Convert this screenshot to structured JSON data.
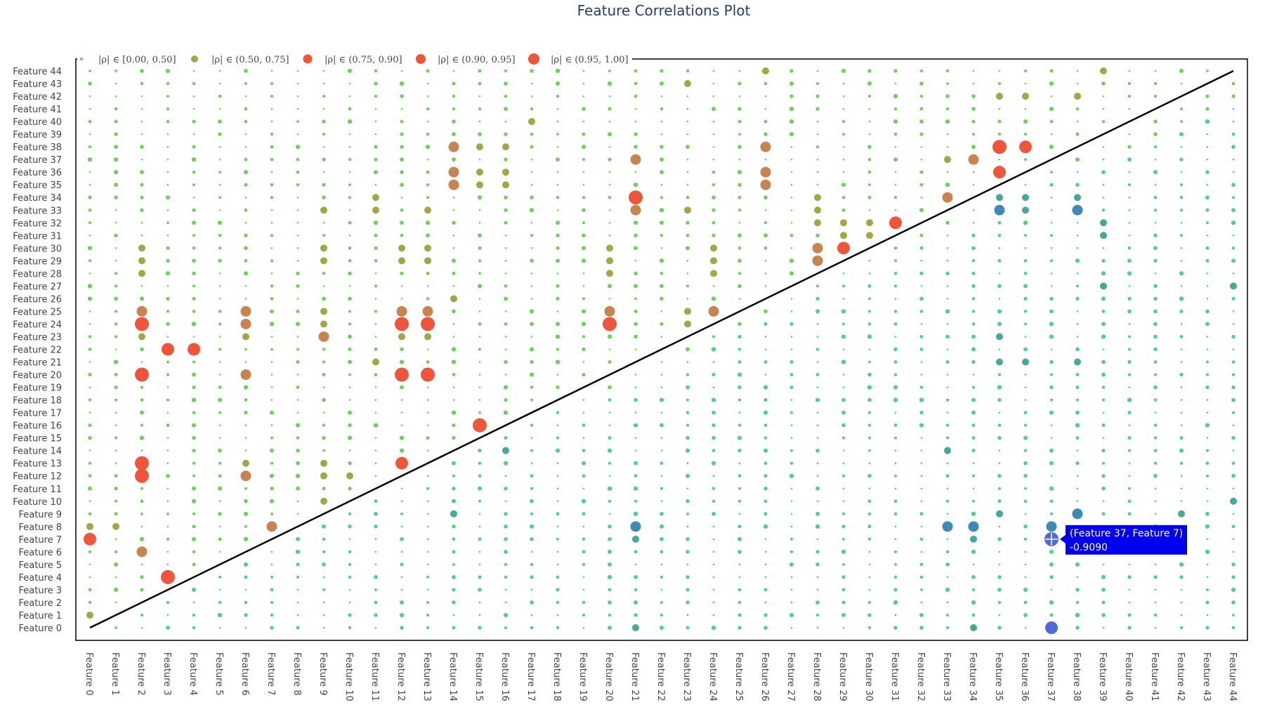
{
  "chart_data": {
    "type": "scatter",
    "title": "Feature Correlations Plot",
    "xlabel": "",
    "ylabel": "",
    "categories": [
      "Feature 0",
      "Feature 1",
      "Feature 2",
      "Feature 3",
      "Feature 4",
      "Feature 5",
      "Feature 6",
      "Feature 7",
      "Feature 8",
      "Feature 9",
      "Feature 10",
      "Feature 11",
      "Feature 12",
      "Feature 13",
      "Feature 14",
      "Feature 15",
      "Feature 16",
      "Feature 17",
      "Feature 18",
      "Feature 19",
      "Feature 20",
      "Feature 21",
      "Feature 22",
      "Feature 23",
      "Feature 24",
      "Feature 25",
      "Feature 26",
      "Feature 27",
      "Feature 28",
      "Feature 29",
      "Feature 30",
      "Feature 31",
      "Feature 32",
      "Feature 33",
      "Feature 34",
      "Feature 35",
      "Feature 36",
      "Feature 37",
      "Feature 38",
      "Feature 39",
      "Feature 40",
      "Feature 41",
      "Feature 42",
      "Feature 43",
      "Feature 44"
    ],
    "legend": {
      "placement": "top-left",
      "entries": [
        {
          "label": "|ρ| ∈ [0.00, 0.50]",
          "color": "#5ad45a",
          "size": 2
        },
        {
          "label": "|ρ| ∈ (0.50, 0.75]",
          "color": "#9fa845",
          "size": 5
        },
        {
          "label": "|ρ| ∈ (0.75, 0.90]",
          "color": "#ef553b",
          "size": 6.5
        },
        {
          "label": "|ρ| ∈ (0.90, 0.95]",
          "color": "#ef553b",
          "size": 7
        },
        {
          "label": "|ρ| ∈ (0.95, 1.00]",
          "color": "#ef553b",
          "size": 8
        }
      ]
    },
    "positive_pairs": [
      [
        26,
        44,
        0.62
      ],
      [
        39,
        44,
        0.62
      ],
      [
        23,
        43,
        0.58
      ],
      [
        35,
        42,
        0.6
      ],
      [
        36,
        42,
        0.6
      ],
      [
        38,
        42,
        0.6
      ],
      [
        17,
        40,
        0.58
      ],
      [
        14,
        38,
        0.8
      ],
      [
        15,
        38,
        0.62
      ],
      [
        16,
        38,
        0.6
      ],
      [
        26,
        38,
        0.8
      ],
      [
        35,
        38,
        0.96
      ],
      [
        36,
        38,
        0.93
      ],
      [
        21,
        37,
        0.8
      ],
      [
        33,
        37,
        0.62
      ],
      [
        34,
        37,
        0.8
      ],
      [
        14,
        36,
        0.8
      ],
      [
        15,
        36,
        0.6
      ],
      [
        16,
        36,
        0.6
      ],
      [
        26,
        36,
        0.8
      ],
      [
        35,
        36,
        0.92
      ],
      [
        14,
        35,
        0.8
      ],
      [
        15,
        35,
        0.6
      ],
      [
        16,
        35,
        0.6
      ],
      [
        26,
        35,
        0.8
      ],
      [
        11,
        34,
        0.6
      ],
      [
        21,
        34,
        0.97
      ],
      [
        33,
        34,
        0.88
      ],
      [
        28,
        34,
        0.58
      ],
      [
        9,
        33,
        0.7
      ],
      [
        11,
        33,
        0.62
      ],
      [
        13,
        33,
        0.6
      ],
      [
        21,
        33,
        0.88
      ],
      [
        23,
        33,
        0.7
      ],
      [
        28,
        33,
        0.62
      ],
      [
        28,
        32,
        0.65
      ],
      [
        29,
        32,
        0.7
      ],
      [
        30,
        32,
        0.65
      ],
      [
        31,
        32,
        0.92
      ],
      [
        29,
        31,
        0.62
      ],
      [
        30,
        31,
        0.7
      ],
      [
        2,
        30,
        0.72
      ],
      [
        9,
        30,
        0.62
      ],
      [
        12,
        30,
        0.65
      ],
      [
        13,
        30,
        0.72
      ],
      [
        20,
        30,
        0.7
      ],
      [
        24,
        30,
        0.72
      ],
      [
        28,
        30,
        0.88
      ],
      [
        29,
        30,
        0.91
      ],
      [
        2,
        29,
        0.7
      ],
      [
        9,
        29,
        0.6
      ],
      [
        12,
        29,
        0.62
      ],
      [
        13,
        29,
        0.7
      ],
      [
        20,
        29,
        0.65
      ],
      [
        24,
        29,
        0.7
      ],
      [
        28,
        29,
        0.82
      ],
      [
        2,
        28,
        0.62
      ],
      [
        20,
        28,
        0.6
      ],
      [
        24,
        28,
        0.62
      ],
      [
        14,
        26,
        0.6
      ],
      [
        2,
        25,
        0.8
      ],
      [
        6,
        25,
        0.8
      ],
      [
        9,
        25,
        0.7
      ],
      [
        12,
        25,
        0.8
      ],
      [
        13,
        25,
        0.8
      ],
      [
        20,
        25,
        0.8
      ],
      [
        23,
        25,
        0.7
      ],
      [
        24,
        25,
        0.8
      ],
      [
        2,
        24,
        0.97
      ],
      [
        6,
        24,
        0.8
      ],
      [
        9,
        24,
        0.62
      ],
      [
        12,
        24,
        0.96
      ],
      [
        13,
        24,
        0.96
      ],
      [
        20,
        24,
        0.97
      ],
      [
        23,
        24,
        0.62
      ],
      [
        9,
        23,
        0.85
      ],
      [
        2,
        23,
        0.6
      ],
      [
        6,
        23,
        0.6
      ],
      [
        12,
        23,
        0.6
      ],
      [
        13,
        23,
        0.6
      ],
      [
        3,
        22,
        0.93
      ],
      [
        4,
        22,
        0.93
      ],
      [
        11,
        21,
        0.62
      ],
      [
        2,
        20,
        0.97
      ],
      [
        6,
        20,
        0.8
      ],
      [
        12,
        20,
        0.97
      ],
      [
        13,
        20,
        0.96
      ],
      [
        15,
        16,
        0.96
      ],
      [
        2,
        13,
        0.96
      ],
      [
        6,
        13,
        0.72
      ],
      [
        9,
        13,
        0.62
      ],
      [
        12,
        13,
        0.93
      ],
      [
        2,
        12,
        0.96
      ],
      [
        6,
        12,
        0.88
      ],
      [
        9,
        12,
        0.62
      ],
      [
        10,
        12,
        0.6
      ],
      [
        9,
        10,
        0.62
      ],
      [
        0,
        8,
        0.72
      ],
      [
        1,
        8,
        0.62
      ],
      [
        7,
        8,
        0.78
      ],
      [
        0,
        7,
        0.92
      ],
      [
        2,
        6,
        0.8
      ],
      [
        3,
        4,
        0.96
      ],
      [
        0,
        1,
        0.65
      ]
    ],
    "negative_pairs": [
      [
        35,
        34,
        -0.7
      ],
      [
        36,
        34,
        -0.7
      ],
      [
        38,
        34,
        -0.7
      ],
      [
        35,
        33,
        -0.8
      ],
      [
        36,
        33,
        -0.65
      ],
      [
        38,
        33,
        -0.8
      ],
      [
        39,
        32,
        -0.7
      ],
      [
        39,
        31,
        -0.75
      ],
      [
        44,
        27,
        -0.62
      ],
      [
        39,
        27,
        -0.6
      ],
      [
        35,
        23,
        -0.65
      ],
      [
        35,
        21,
        -0.62
      ],
      [
        36,
        21,
        -0.7
      ],
      [
        38,
        21,
        -0.6
      ],
      [
        14,
        14,
        0
      ],
      [
        16,
        14,
        -0.62
      ],
      [
        33,
        14,
        -0.62
      ],
      [
        14,
        9,
        -0.65
      ],
      [
        35,
        9,
        -0.7
      ],
      [
        38,
        9,
        -0.8
      ],
      [
        42,
        9,
        -0.6
      ],
      [
        44,
        10,
        -0.62
      ],
      [
        21,
        8,
        -0.78
      ],
      [
        33,
        8,
        -0.8
      ],
      [
        34,
        8,
        -0.78
      ],
      [
        37,
        8,
        -0.8
      ],
      [
        21,
        7,
        -0.75
      ],
      [
        34,
        7,
        -0.7
      ],
      [
        21,
        0,
        -0.7
      ],
      [
        34,
        0,
        -0.65
      ],
      [
        37,
        0,
        -0.95
      ]
    ],
    "hover": {
      "label": "(Feature 37, Feature 7)",
      "value": "-0.9090",
      "x": 37,
      "y": 7
    }
  }
}
